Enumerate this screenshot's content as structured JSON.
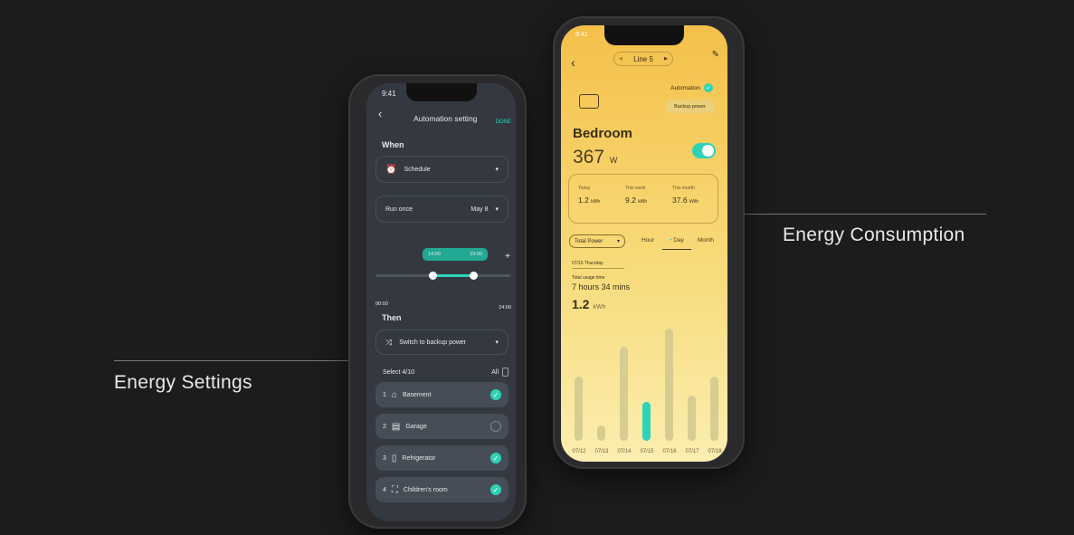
{
  "captions": {
    "left": "Energy Settings",
    "right": "Energy Consumption"
  },
  "left_phone": {
    "status_time": "9:41",
    "title": "Automation setting",
    "done": "DONE",
    "when": "When",
    "trigger": "Schedule",
    "repeat": "Run once",
    "date": "May 8",
    "range_start": "14:00",
    "range_end": "19:00",
    "axis_start": "00:00",
    "axis_end": "24:00",
    "add": "+",
    "then": "Then",
    "action": "Switch to backup power",
    "select_count": "Select 4/10",
    "all": "All",
    "devices": [
      {
        "num": "1",
        "name": "Basement",
        "icon": "house-icon",
        "checked": true
      },
      {
        "num": "2",
        "name": "Garage",
        "icon": "garage-icon",
        "checked": false
      },
      {
        "num": "3",
        "name": "Refrigerator",
        "icon": "fridge-icon",
        "checked": true
      },
      {
        "num": "4",
        "name": "Children's room",
        "icon": "crib-icon",
        "checked": true
      }
    ],
    "accent": "#2ed3b7"
  },
  "right_phone": {
    "status_time": "9:41",
    "line": "Line 5",
    "automation": "Automation",
    "backup": "Backup power",
    "room": "Bedroom",
    "power": "367",
    "power_unit": "W",
    "switch_on": true,
    "stats": [
      {
        "label": "Today",
        "value": "1.2",
        "unit": "kWh"
      },
      {
        "label": "This week",
        "value": "9.2",
        "unit": "kWh"
      },
      {
        "label": "This month",
        "value": "37.6",
        "unit": "kWh"
      }
    ],
    "metric": "Total Power",
    "tabs": [
      "Hour",
      "Day",
      "Month"
    ],
    "active_tab": "Day",
    "date": "07/15 Thursday",
    "usage_label": "Total usage time",
    "usage": "7 hours 34 mins",
    "kwh": "1.2",
    "kwh_unit": "kWh"
  },
  "chart_data": {
    "type": "bar",
    "categories": [
      "07/12",
      "07/13",
      "07/14",
      "07/15",
      "07/16",
      "07/17",
      "07/18"
    ],
    "values": [
      71,
      17,
      104,
      43,
      124,
      50,
      71
    ],
    "selected": "07/15",
    "colors": {
      "bar": "#d8cd90",
      "selected": "#2ed3b7"
    }
  }
}
